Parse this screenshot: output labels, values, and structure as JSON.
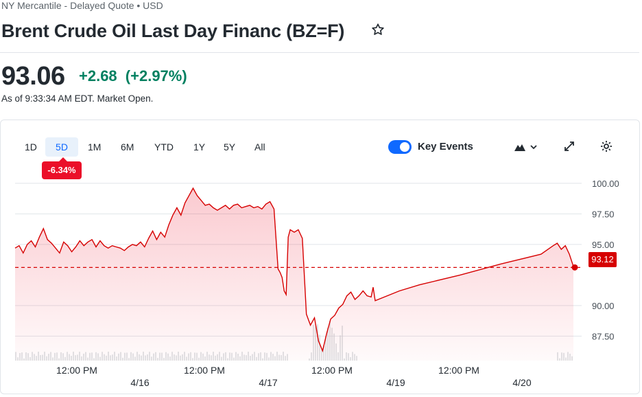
{
  "header": {
    "exchange": "NY Mercantile - Delayed Quote • USD",
    "title": "Brent Crude Oil Last Day Financ (BZ=F)"
  },
  "quote": {
    "price": "93.06",
    "change": "+2.68",
    "change_pct": "(+2.97%)",
    "as_of": "As of 9:33:34 AM EDT. Market Open."
  },
  "toolbar": {
    "ranges": [
      "1D",
      "5D",
      "1M",
      "6M",
      "YTD",
      "1Y",
      "5Y",
      "All"
    ],
    "active_range": "5D",
    "range_change": "-6.34%",
    "key_events_label": "Key Events",
    "key_events_on": true,
    "icons": [
      "mountain-chart-icon",
      "chevron-down-icon",
      "expand-icon",
      "gear-icon"
    ]
  },
  "colors": {
    "accent": "#0f69ff",
    "positive": "#008060",
    "negative": "#eb0f29",
    "line": "#d60000"
  },
  "chart_data": {
    "type": "area",
    "yticks": [
      "100.00",
      "97.50",
      "95.00",
      "90.00",
      "87.50"
    ],
    "ylim": [
      85.5,
      100.5
    ],
    "xticks": [
      "12:00 PM",
      "4/16",
      "12:00 PM",
      "4/17",
      "12:00 PM",
      "4/19",
      "12:00 PM",
      "4/20"
    ],
    "reference_price": 93.12,
    "reference_label": "93.12",
    "series": [
      {
        "x": [
          0,
          2,
          4,
          6,
          8,
          10,
          12,
          14,
          16,
          18,
          20,
          22,
          24,
          26,
          28,
          30,
          32,
          34,
          36,
          38,
          40,
          42,
          44,
          46,
          48,
          50,
          52,
          54,
          56,
          58,
          60,
          62,
          64,
          66,
          68,
          70,
          72,
          74,
          76,
          78,
          80,
          82,
          84,
          86,
          88,
          90,
          92,
          94,
          96,
          98,
          100,
          102,
          104,
          106,
          108,
          110,
          112,
          114,
          116,
          118,
          120,
          122,
          124,
          126,
          128,
          130,
          131,
          132,
          133,
          134,
          135,
          136,
          138,
          140,
          142,
          144,
          146,
          148,
          150,
          152,
          154,
          156,
          158,
          160,
          162,
          164,
          166,
          168,
          170,
          172,
          174,
          176,
          177,
          178,
          190,
          200,
          220,
          240,
          260,
          266,
          268,
          270,
          272,
          274,
          276
        ],
        "y": [
          94.7,
          94.9,
          94.3,
          95.0,
          95.3,
          94.8,
          95.6,
          96.3,
          95.4,
          95.1,
          94.7,
          94.3,
          95.2,
          94.9,
          94.4,
          94.8,
          95.3,
          94.9,
          95.2,
          95.4,
          94.8,
          95.3,
          94.9,
          94.7,
          94.9,
          94.8,
          94.7,
          94.5,
          94.8,
          95.0,
          94.9,
          95.2,
          94.8,
          95.5,
          96.1,
          95.4,
          96.0,
          95.6,
          96.6,
          97.4,
          98.0,
          97.4,
          98.4,
          99.0,
          99.6,
          99.0,
          98.6,
          98.2,
          98.3,
          98.0,
          97.8,
          98.0,
          98.2,
          97.9,
          98.2,
          98.3,
          98.0,
          98.1,
          98.2,
          98.0,
          98.1,
          97.9,
          98.3,
          98.5,
          97.9,
          93.0,
          92.7,
          92.3,
          91.2,
          90.9,
          95.6,
          96.2,
          96.0,
          96.2,
          95.5,
          89.3,
          88.4,
          89.0,
          87.1,
          86.3,
          87.7,
          88.9,
          89.2,
          89.8,
          90.1,
          90.8,
          91.1,
          90.5,
          90.8,
          91.2,
          90.8,
          90.7,
          91.5,
          90.4,
          91.2,
          91.7,
          92.5,
          93.4,
          94.2,
          94.9,
          95.1,
          94.6,
          94.9,
          94.2,
          93.2
        ]
      }
    ]
  }
}
